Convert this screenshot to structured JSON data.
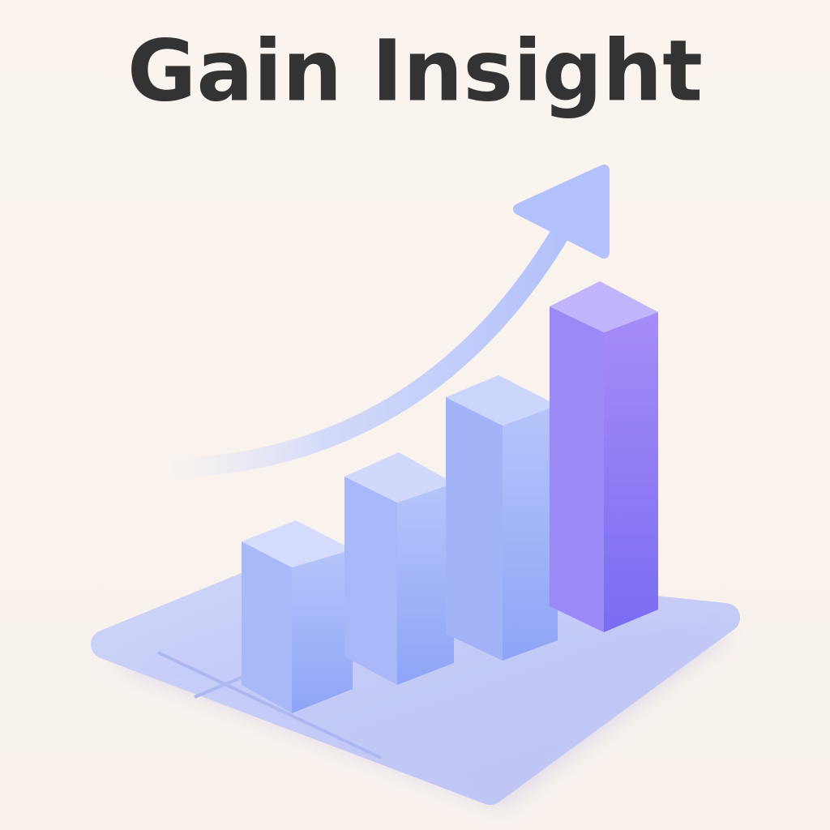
{
  "title": "Gain Insight"
}
